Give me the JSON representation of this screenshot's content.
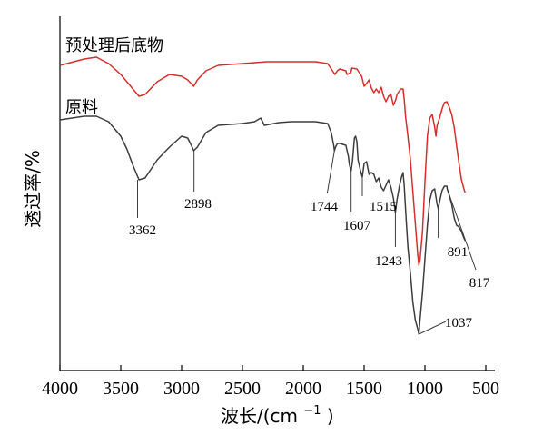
{
  "chart_data": {
    "type": "line",
    "xlabel_main": "波长/(cm",
    "xlabel_sup": "−1",
    "xlabel_end": ")",
    "ylabel": "透过率/%",
    "xlim": [
      4000,
      500
    ],
    "x_ticks": [
      "4000",
      "3500",
      "3000",
      "2500",
      "2000",
      "1500",
      "1000",
      "500"
    ],
    "grid": false,
    "series_colors": {
      "treated": "#d62d2d",
      "raw": "#3d3d3d"
    },
    "series": [
      {
        "key": "treated",
        "name": "预处理后底物",
        "points": [
          [
            4000,
            72
          ],
          [
            3800,
            65
          ],
          [
            3700,
            63
          ],
          [
            3600,
            70
          ],
          [
            3500,
            82
          ],
          [
            3400,
            98
          ],
          [
            3350,
            106
          ],
          [
            3300,
            104
          ],
          [
            3200,
            90
          ],
          [
            3100,
            82
          ],
          [
            3000,
            84
          ],
          [
            2950,
            88
          ],
          [
            2900,
            95
          ],
          [
            2870,
            88
          ],
          [
            2800,
            78
          ],
          [
            2700,
            72
          ],
          [
            2500,
            70
          ],
          [
            2400,
            69
          ],
          [
            2300,
            68
          ],
          [
            2100,
            68
          ],
          [
            2000,
            68
          ],
          [
            1900,
            68
          ],
          [
            1800,
            70
          ],
          [
            1760,
            78
          ],
          [
            1740,
            82
          ],
          [
            1720,
            78
          ],
          [
            1700,
            76
          ],
          [
            1650,
            78
          ],
          [
            1640,
            82
          ],
          [
            1610,
            80
          ],
          [
            1600,
            75
          ],
          [
            1560,
            76
          ],
          [
            1520,
            84
          ],
          [
            1500,
            95
          ],
          [
            1480,
            92
          ],
          [
            1460,
            88
          ],
          [
            1440,
            97
          ],
          [
            1420,
            102
          ],
          [
            1400,
            98
          ],
          [
            1380,
            102
          ],
          [
            1360,
            96
          ],
          [
            1340,
            106
          ],
          [
            1320,
            112
          ],
          [
            1300,
            106
          ],
          [
            1280,
            104
          ],
          [
            1260,
            116
          ],
          [
            1240,
            110
          ],
          [
            1230,
            104
          ],
          [
            1210,
            100
          ],
          [
            1200,
            98
          ],
          [
            1180,
            98
          ],
          [
            1170,
            110
          ],
          [
            1160,
            128
          ],
          [
            1140,
            150
          ],
          [
            1120,
            175
          ],
          [
            1100,
            210
          ],
          [
            1080,
            245
          ],
          [
            1060,
            280
          ],
          [
            1050,
            292
          ],
          [
            1040,
            286
          ],
          [
            1020,
            255
          ],
          [
            1000,
            200
          ],
          [
            980,
            150
          ],
          [
            960,
            130
          ],
          [
            940,
            126
          ],
          [
            920,
            140
          ],
          [
            910,
            150
          ],
          [
            900,
            138
          ],
          [
            880,
            130
          ],
          [
            860,
            120
          ],
          [
            840,
            113
          ],
          [
            820,
            112
          ],
          [
            800,
            118
          ],
          [
            780,
            126
          ],
          [
            760,
            140
          ],
          [
            740,
            160
          ],
          [
            720,
            180
          ],
          [
            700,
            198
          ],
          [
            680,
            208
          ],
          [
            670,
            212
          ]
        ]
      },
      {
        "key": "raw",
        "name": "原料",
        "points": [
          [
            4000,
            132
          ],
          [
            3800,
            128
          ],
          [
            3700,
            128
          ],
          [
            3600,
            134
          ],
          [
            3500,
            150
          ],
          [
            3450,
            164
          ],
          [
            3400,
            182
          ],
          [
            3350,
            198
          ],
          [
            3300,
            196
          ],
          [
            3200,
            176
          ],
          [
            3100,
            162
          ],
          [
            3000,
            150
          ],
          [
            2950,
            152
          ],
          [
            2920,
            160
          ],
          [
            2900,
            166
          ],
          [
            2870,
            162
          ],
          [
            2800,
            146
          ],
          [
            2700,
            138
          ],
          [
            2600,
            137
          ],
          [
            2500,
            136
          ],
          [
            2400,
            134
          ],
          [
            2350,
            130
          ],
          [
            2320,
            138
          ],
          [
            2200,
            135
          ],
          [
            2100,
            134
          ],
          [
            2000,
            134
          ],
          [
            1900,
            134
          ],
          [
            1800,
            136
          ],
          [
            1770,
            146
          ],
          [
            1750,
            160
          ],
          [
            1744,
            166
          ],
          [
            1735,
            162
          ],
          [
            1720,
            158
          ],
          [
            1700,
            158
          ],
          [
            1650,
            160
          ],
          [
            1630,
            172
          ],
          [
            1620,
            182
          ],
          [
            1607,
            188
          ],
          [
            1595,
            176
          ],
          [
            1580,
            152
          ],
          [
            1570,
            150
          ],
          [
            1560,
            156
          ],
          [
            1550,
            176
          ],
          [
            1530,
            188
          ],
          [
            1515,
            195
          ],
          [
            1500,
            180
          ],
          [
            1480,
            178
          ],
          [
            1460,
            192
          ],
          [
            1440,
            190
          ],
          [
            1420,
            192
          ],
          [
            1400,
            200
          ],
          [
            1380,
            196
          ],
          [
            1360,
            206
          ],
          [
            1340,
            210
          ],
          [
            1320,
            204
          ],
          [
            1300,
            198
          ],
          [
            1280,
            206
          ],
          [
            1260,
            218
          ],
          [
            1243,
            234
          ],
          [
            1230,
            220
          ],
          [
            1210,
            205
          ],
          [
            1195,
            196
          ],
          [
            1180,
            190
          ],
          [
            1170,
            205
          ],
          [
            1155,
            240
          ],
          [
            1140,
            272
          ],
          [
            1120,
            300
          ],
          [
            1100,
            332
          ],
          [
            1080,
            352
          ],
          [
            1060,
            362
          ],
          [
            1050,
            368
          ],
          [
            1040,
            352
          ],
          [
            1020,
            322
          ],
          [
            1000,
            285
          ],
          [
            980,
            248
          ],
          [
            960,
            220
          ],
          [
            940,
            210
          ],
          [
            920,
            208
          ],
          [
            900,
            225
          ],
          [
            891,
            230
          ],
          [
            880,
            222
          ],
          [
            860,
            210
          ],
          [
            840,
            205
          ],
          [
            820,
            205
          ],
          [
            817,
            208
          ],
          [
            800,
            215
          ],
          [
            780,
            225
          ],
          [
            760,
            240
          ],
          [
            740,
            248
          ],
          [
            720,
            250
          ],
          [
            700,
            255
          ],
          [
            680,
            262
          ],
          [
            670,
            265
          ]
        ]
      }
    ],
    "annotations": [
      {
        "label": "3362",
        "x": 3362,
        "y": 198,
        "ly": 240
      },
      {
        "label": "2898",
        "x": 2898,
        "y": 166,
        "ly": 211
      },
      {
        "label": "1744",
        "x": 1744,
        "y": 166,
        "ly": 213
      },
      {
        "label": "1607",
        "x": 1607,
        "y": 188,
        "ly": 233
      },
      {
        "label": "1515",
        "x": 1515,
        "y": 195,
        "ly": 216
      },
      {
        "label": "1243",
        "x": 1243,
        "y": 234,
        "ly": 272
      },
      {
        "label": "891",
        "x": 891,
        "y": 230,
        "ly": 262
      },
      {
        "label": "817",
        "x": 817,
        "y": 208,
        "ly": 297
      },
      {
        "label": "1037",
        "x": 1050,
        "y": 368,
        "ly": 354
      }
    ]
  }
}
